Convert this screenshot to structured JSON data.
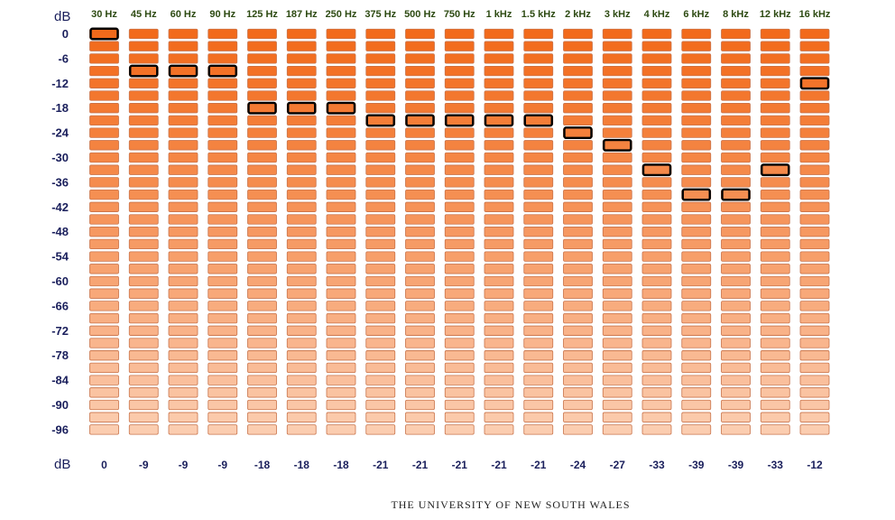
{
  "chart_data": {
    "type": "bar",
    "ylabel": "dB",
    "bottom_label": "dB",
    "ylim": [
      -99,
      0
    ],
    "segment_step_db": 3,
    "y_ticks": [
      "0",
      "-6",
      "-12",
      "-18",
      "-24",
      "-30",
      "-36",
      "-42",
      "-48",
      "-54",
      "-60",
      "-66",
      "-72",
      "-78",
      "-84",
      "-90",
      "-96"
    ],
    "y_tick_values": [
      0,
      -6,
      -12,
      -18,
      -24,
      -30,
      -36,
      -42,
      -48,
      -54,
      -60,
      -66,
      -72,
      -78,
      -84,
      -90,
      -96
    ],
    "categories": [
      "30 Hz",
      "45 Hz",
      "60 Hz",
      "90 Hz",
      "125 Hz",
      "187 Hz",
      "250 Hz",
      "375 Hz",
      "500 Hz",
      "750 Hz",
      "1 kHz",
      "1.5 kHz",
      "2 kHz",
      "3 kHz",
      "4 kHz",
      "6 kHz",
      "8 kHz",
      "12 kHz",
      "16 kHz"
    ],
    "values": [
      0,
      -9,
      -9,
      -9,
      -18,
      -18,
      -18,
      -21,
      -21,
      -21,
      -21,
      -21,
      -24,
      -27,
      -33,
      -39,
      -39,
      -33,
      -12
    ],
    "value_labels": [
      "0",
      "-9",
      "-9",
      "-9",
      "-18",
      "-18",
      "-18",
      "-21",
      "-21",
      "-21",
      "-21",
      "-21",
      "-24",
      "-27",
      "-33",
      "-39",
      "-39",
      "-33",
      "-12"
    ],
    "colors": {
      "segment_top": "#f26a1b",
      "segment_bottom": "#fbcdb0",
      "segment_border": "#c96a3a",
      "marker": "#000000"
    }
  },
  "footer": "THE UNIVERSITY OF NEW SOUTH WALES"
}
